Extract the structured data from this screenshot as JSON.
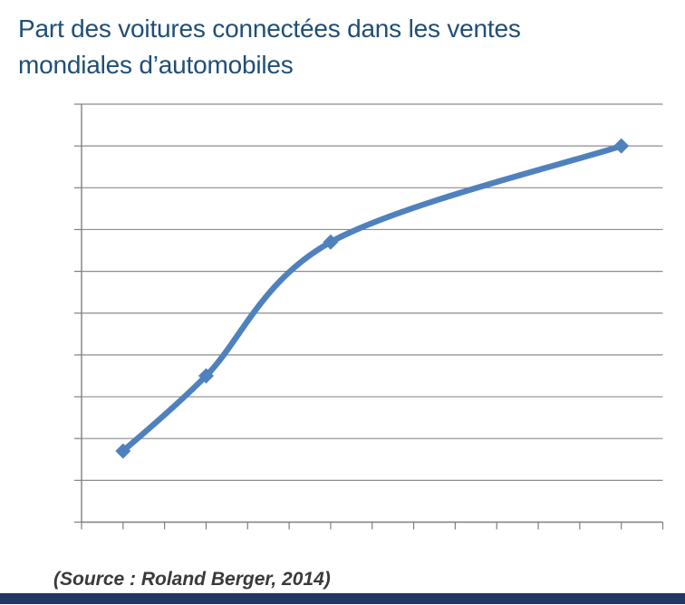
{
  "title": "Part des voitures connectées dans les ventes mondiales d’automobiles",
  "source": "(Source : Roland Berger, 2014)",
  "colors": {
    "background": "#FFFFFF",
    "title": "#1F4E79",
    "line": "#4F81BD",
    "marker": "#4F81BD",
    "gridline": "#8C8C8C",
    "axis": "#7F7F7F",
    "source_text": "#3A3A3A",
    "bottom_bar": "#1F3864"
  },
  "chart_data": {
    "type": "line",
    "title": "Part des voitures connectées dans les ventes mondiales d’automobiles",
    "line_style": "smooth",
    "marker": "diamond",
    "legend": "none",
    "grid": "horizontal",
    "x": [
      1,
      3,
      6,
      13
    ],
    "values": [
      17,
      35,
      67,
      90
    ],
    "x_axis": {
      "tick_count": 14,
      "tick_labels_visible": false,
      "label": ""
    },
    "y_axis": {
      "min": 0,
      "max": 100,
      "gridline_step": 10,
      "tick_labels_visible": false,
      "label": ""
    },
    "annotations": [
      "(Source : Roland Berger, 2014)"
    ]
  }
}
